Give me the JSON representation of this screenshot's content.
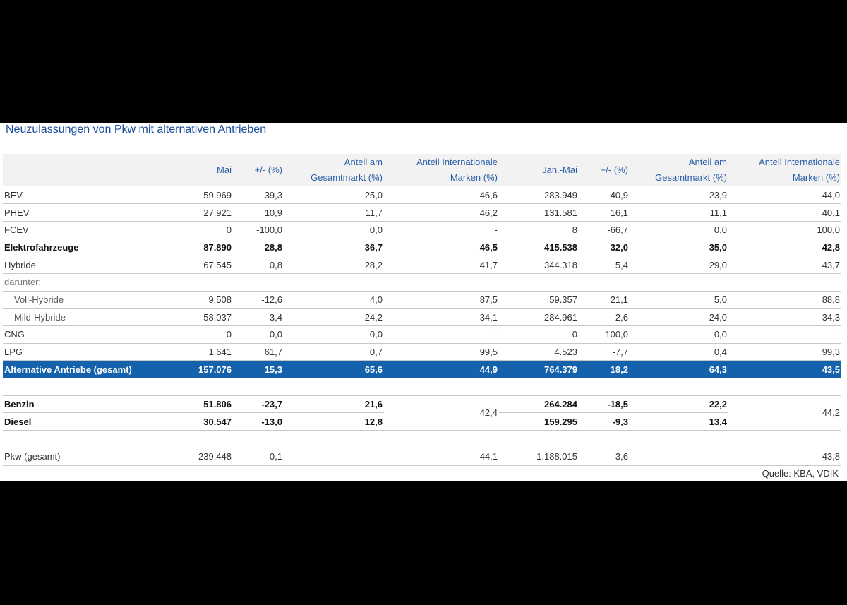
{
  "title": "Neuzulassungen von Pkw mit alternativen Antrieben",
  "columns": {
    "mai": "Mai",
    "change1": "+/- (%)",
    "share_total1_line1": "Anteil am",
    "share_total1_line2": "Gesamtmarkt (%)",
    "share_intl1_line1": "Anteil Internationale",
    "share_intl1_line2": "Marken (%)",
    "janmai": "Jan.-Mai",
    "change2": "+/- (%)",
    "share_total2_line1": "Anteil am",
    "share_total2_line2": "Gesamtmarkt (%)",
    "share_intl2_line1": "Anteil Internationale",
    "share_intl2_line2": "Marken (%)"
  },
  "rows": [
    {
      "label": "BEV",
      "v": [
        "59.969",
        "39,3",
        "25,0",
        "46,6",
        "283.949",
        "40,9",
        "23,9",
        "44,0"
      ]
    },
    {
      "label": "PHEV",
      "v": [
        "27.921",
        "10,9",
        "11,7",
        "46,2",
        "131.581",
        "16,1",
        "11,1",
        "40,1"
      ]
    },
    {
      "label": "FCEV",
      "v": [
        "0",
        "-100,0",
        "0,0",
        "-",
        "8",
        "-66,7",
        "0,0",
        "100,0"
      ]
    },
    {
      "label": "Elektrofahrzeuge",
      "v": [
        "87.890",
        "28,8",
        "36,7",
        "46,5",
        "415.538",
        "32,0",
        "35,0",
        "42,8"
      ]
    },
    {
      "label": "Hybride",
      "v": [
        "67.545",
        "0,8",
        "28,2",
        "41,7",
        "344.318",
        "5,4",
        "29,0",
        "43,7"
      ]
    },
    {
      "label": "darunter:"
    },
    {
      "label": "Voll-Hybride",
      "v": [
        "9.508",
        "-12,6",
        "4,0",
        "87,5",
        "59.357",
        "21,1",
        "5,0",
        "88,8"
      ]
    },
    {
      "label": "Mild-Hybride",
      "v": [
        "58.037",
        "3,4",
        "24,2",
        "34,1",
        "284.961",
        "2,6",
        "24,0",
        "34,3"
      ]
    },
    {
      "label": "CNG",
      "v": [
        "0",
        "0,0",
        "0,0",
        "-",
        "0",
        "-100,0",
        "0,0",
        "-"
      ]
    },
    {
      "label": "LPG",
      "v": [
        "1.641",
        "61,7",
        "0,7",
        "99,5",
        "4.523",
        "-7,7",
        "0,4",
        "99,3"
      ]
    },
    {
      "label": "Alternative Antriebe (gesamt)",
      "v": [
        "157.076",
        "15,3",
        "65,6",
        "44,9",
        "764.379",
        "18,2",
        "64,3",
        "43,5"
      ]
    }
  ],
  "fuel": {
    "benzin": {
      "label": "Benzin",
      "v": [
        "51.806",
        "-23,7",
        "21,6",
        "264.284",
        "-18,5",
        "22,2"
      ]
    },
    "diesel": {
      "label": "Diesel",
      "v": [
        "30.547",
        "-13,0",
        "12,8",
        "159.295",
        "-9,3",
        "13,4"
      ]
    },
    "intl_mai": "42,4",
    "intl_janmai": "44,2"
  },
  "pkw": {
    "label": "Pkw (gesamt)",
    "v": [
      "239.448",
      "0,1",
      "",
      "44,1",
      "1.188.015",
      "3,6",
      "",
      "43,8"
    ]
  },
  "source": "Quelle: KBA, VDIK"
}
